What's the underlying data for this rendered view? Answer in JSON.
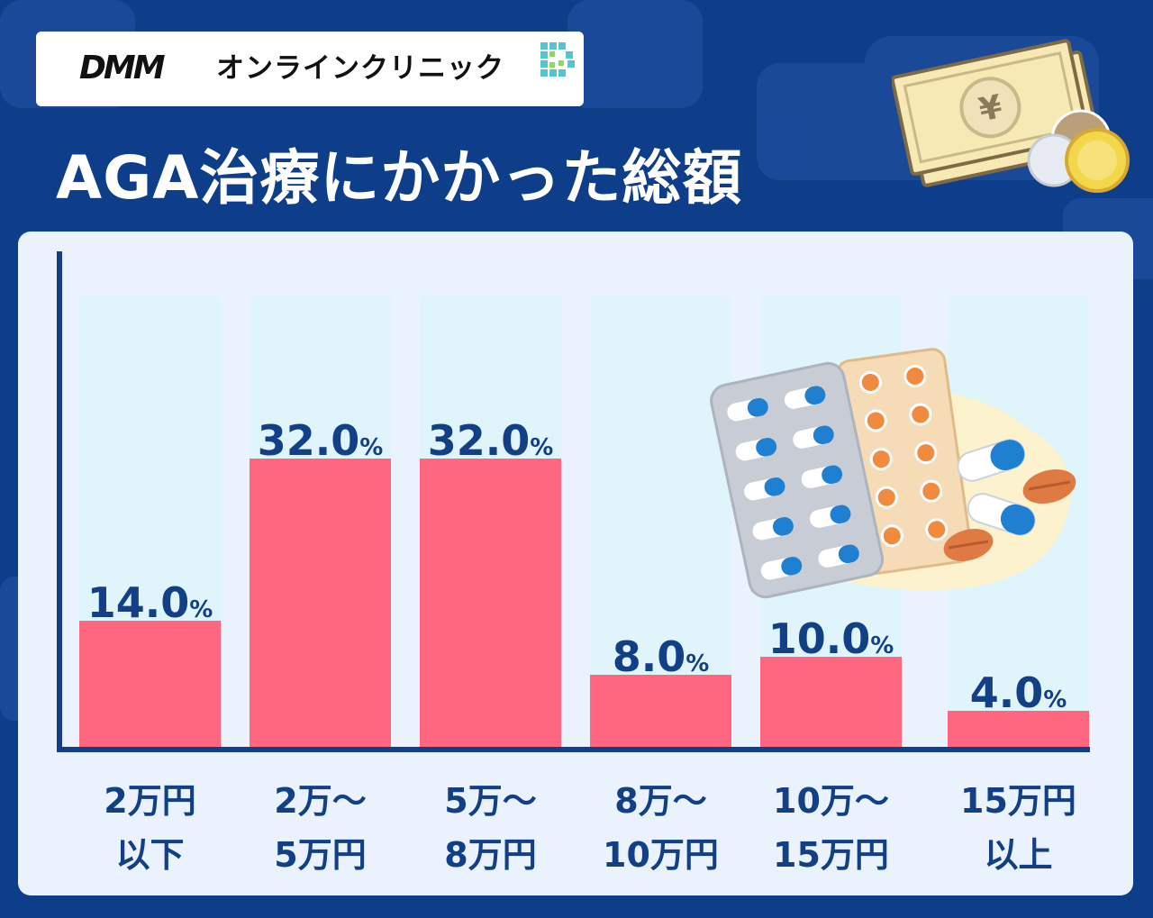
{
  "brand": {
    "logo_word": "DMM",
    "logo_text": "オンラインクリニック"
  },
  "title": "AGA治療にかかった総額",
  "colors": {
    "background": "#0e3d8a",
    "panel": "#e9f2fd",
    "column_bg": "#dff4fb",
    "bar": "#ff6680",
    "label": "#123f86",
    "axis": "#123f86"
  },
  "chart_data": {
    "type": "bar",
    "categories": [
      [
        "2万円",
        "以下"
      ],
      [
        "2万～",
        "5万円"
      ],
      [
        "5万～",
        "8万円"
      ],
      [
        "8万～",
        "10万円"
      ],
      [
        "10万～",
        "15万円"
      ],
      [
        "15万円",
        "以上"
      ]
    ],
    "values": [
      14.0,
      32.0,
      32.0,
      8.0,
      10.0,
      4.0
    ],
    "value_labels": [
      "14.0",
      "32.0",
      "32.0",
      "8.0",
      "10.0",
      "4.0"
    ],
    "unit": "%",
    "ylim": [
      0,
      50
    ],
    "grid": false,
    "legend": "none"
  }
}
